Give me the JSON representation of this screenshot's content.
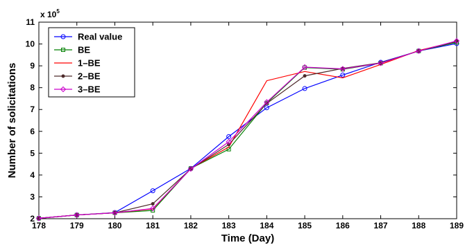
{
  "chart_data": {
    "type": "line",
    "title": "",
    "xlabel": "Time (Day)",
    "ylabel": "Number of solicitations",
    "y_multiplier_label": "x 10",
    "y_multiplier_exponent": "5",
    "xlim": [
      178,
      189
    ],
    "ylim": [
      2,
      11
    ],
    "x_ticks": [
      "178",
      "179",
      "180",
      "181",
      "182",
      "183",
      "184",
      "185",
      "186",
      "187",
      "188",
      "189"
    ],
    "y_ticks": [
      "2",
      "3",
      "4",
      "5",
      "6",
      "7",
      "8",
      "9",
      "10",
      "11"
    ],
    "grid": false,
    "legend_position": "top-left",
    "x": [
      178,
      179,
      180,
      181,
      182,
      183,
      184,
      185,
      186,
      187,
      188,
      189
    ],
    "series": [
      {
        "name": "Real value",
        "color": "#0000ff",
        "marker": "circle",
        "values": [
          2.02,
          2.17,
          2.28,
          3.28,
          4.3,
          5.76,
          7.08,
          7.96,
          8.58,
          9.16,
          9.68,
          10.02
        ]
      },
      {
        "name": "BE",
        "color": "#008000",
        "marker": "square",
        "values": [
          2.02,
          2.17,
          2.27,
          2.38,
          4.3,
          5.18,
          7.3,
          8.92,
          8.84,
          9.12,
          9.68,
          10.08
        ]
      },
      {
        "name": "1–BE",
        "color": "#ff0000",
        "marker": "none",
        "values": [
          2.02,
          2.17,
          2.27,
          2.45,
          4.3,
          5.28,
          8.32,
          8.74,
          8.45,
          9.06,
          9.7,
          10.12
        ]
      },
      {
        "name": "2–BE",
        "color": "#4d2a2a",
        "marker": "dot",
        "values": [
          2.02,
          2.17,
          2.27,
          2.68,
          4.28,
          5.4,
          7.28,
          8.54,
          8.88,
          9.14,
          9.68,
          10.12
        ]
      },
      {
        "name": "3–BE",
        "color": "#cc00cc",
        "marker": "diamond",
        "values": [
          2.02,
          2.17,
          2.27,
          2.47,
          4.28,
          5.52,
          7.34,
          8.94,
          8.86,
          9.12,
          9.68,
          10.14
        ]
      }
    ]
  }
}
